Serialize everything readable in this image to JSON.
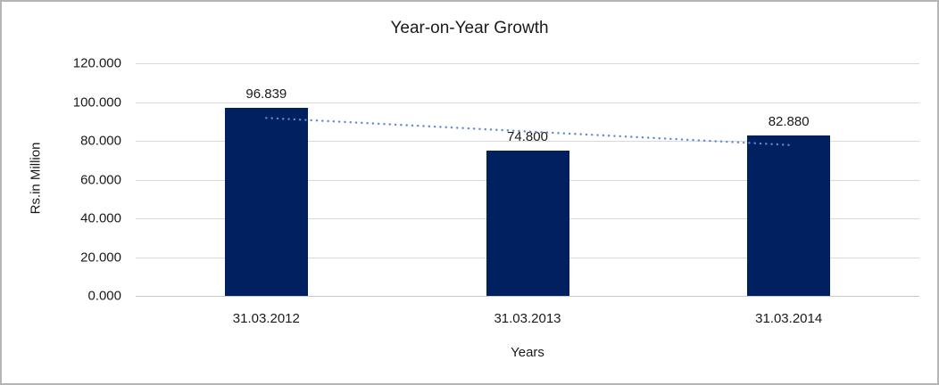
{
  "chart_data": {
    "type": "bar",
    "title": "Year-on-Year Growth",
    "xlabel": "Years",
    "ylabel": "Rs.in Million",
    "categories": [
      "31.03.2012",
      "31.03.2013",
      "31.03.2014"
    ],
    "values": [
      96.839,
      74.8,
      82.88
    ],
    "value_labels": [
      "96.839",
      "74.800",
      "82.880"
    ],
    "y_tick_values": [
      0,
      20,
      40,
      60,
      80,
      100,
      120
    ],
    "y_tick_labels": [
      "0.000",
      "20.000",
      "40.000",
      "60.000",
      "80.000",
      "100.000",
      "120.000"
    ],
    "ylim": [
      0,
      120
    ],
    "grid": "horizontal",
    "legend": "none",
    "trendline": {
      "type": "linear",
      "style": "dotted"
    },
    "colors": {
      "bar": "#002060",
      "trendline": "#5b8bd5",
      "gridline": "#d9d9d9",
      "axis_line": "#c9c9c9",
      "text": "#1a1a1a",
      "frame_border": "#b5b5b5",
      "background": "#ffffff"
    }
  }
}
